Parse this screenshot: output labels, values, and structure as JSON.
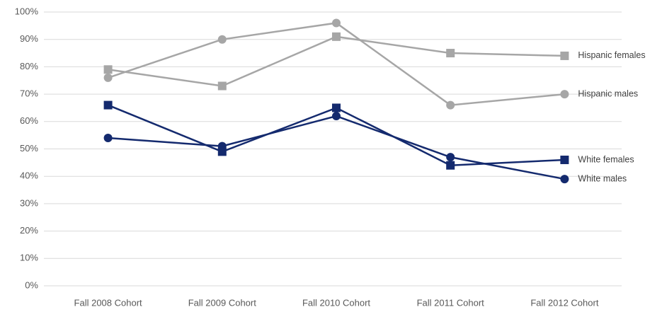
{
  "chart_data": {
    "type": "line",
    "categories": [
      "Fall 2008 Cohort",
      "Fall 2009 Cohort",
      "Fall 2010 Cohort",
      "Fall 2011 Cohort",
      "Fall 2012 Cohort"
    ],
    "series": [
      {
        "name": "Hispanic females",
        "color": "#a6a6a6",
        "marker": "square",
        "values": [
          79,
          73,
          91,
          85,
          84
        ]
      },
      {
        "name": "Hispanic males",
        "color": "#a6a6a6",
        "marker": "circle",
        "values": [
          76,
          90,
          96,
          66,
          70
        ]
      },
      {
        "name": "White females",
        "color": "#142a6e",
        "marker": "square",
        "values": [
          66,
          49,
          65,
          44,
          46
        ]
      },
      {
        "name": "White males",
        "color": "#142a6e",
        "marker": "circle",
        "values": [
          54,
          51,
          62,
          47,
          39
        ]
      }
    ],
    "ylim": [
      0,
      100
    ],
    "yticks": [
      {
        "value": 0,
        "label": "0%"
      },
      {
        "value": 10,
        "label": "10%"
      },
      {
        "value": 20,
        "label": "20%"
      },
      {
        "value": 30,
        "label": "30%"
      },
      {
        "value": 40,
        "label": "40%"
      },
      {
        "value": 50,
        "label": "50%"
      },
      {
        "value": 60,
        "label": "60%"
      },
      {
        "value": 70,
        "label": "70%"
      },
      {
        "value": 80,
        "label": "80%"
      },
      {
        "value": 90,
        "label": "90%"
      },
      {
        "value": 100,
        "label": "100%"
      }
    ],
    "grid": true
  }
}
